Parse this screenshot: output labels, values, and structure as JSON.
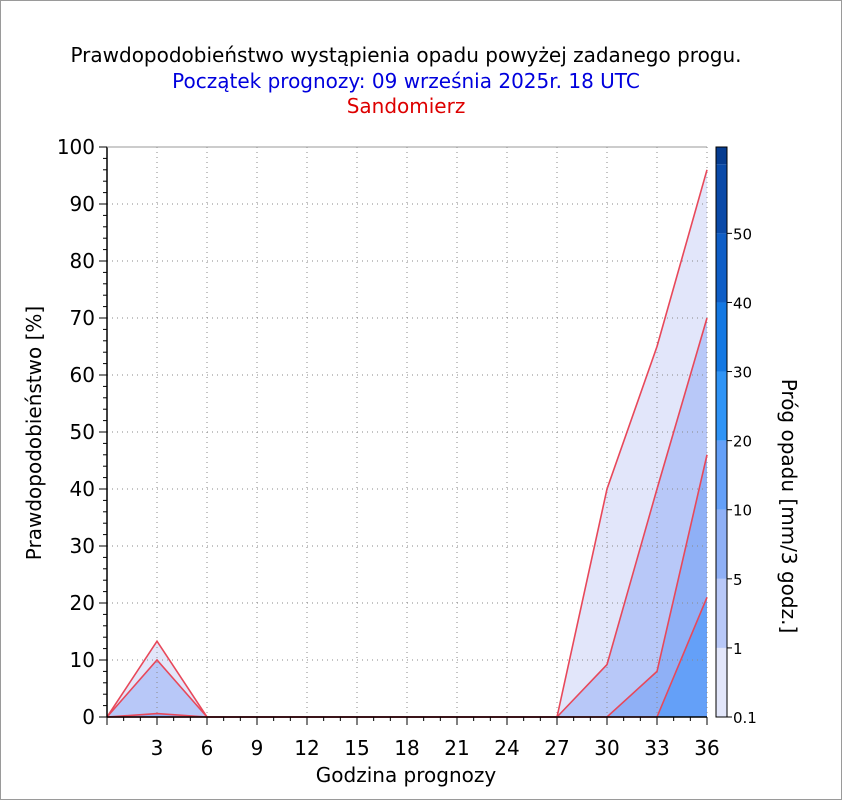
{
  "title": "Prawdopodobieństwo wystąpienia opadu powyżej zadanego progu.",
  "subtitle": "Początek prognozy: 09 września 2025r. 18 UTC",
  "location": "Sandomierz",
  "colors": {
    "title": "#000000",
    "subtitle": "#0000dd",
    "location": "#dd0000",
    "contour_line": "#e8485a"
  },
  "chart_data": {
    "type": "area",
    "title": "Prawdopodobieństwo wystąpienia opadu powyżej zadanego progu.",
    "xlabel": "Godzina prognozy",
    "ylabel": "Prawdopodobieństwo [%]",
    "xlim": [
      0,
      36
    ],
    "ylim": [
      0,
      100
    ],
    "x_ticks": [
      3,
      6,
      9,
      12,
      15,
      18,
      21,
      24,
      27,
      30,
      33,
      36
    ],
    "y_ticks": [
      0,
      10,
      20,
      30,
      40,
      50,
      60,
      70,
      80,
      90,
      100
    ],
    "grid": true,
    "x": [
      0,
      3,
      6,
      9,
      12,
      15,
      18,
      21,
      24,
      27,
      30,
      33,
      36
    ],
    "series": [
      {
        "threshold": 0.1,
        "color": "#e2e6fa",
        "values": [
          0,
          13.3,
          0,
          0,
          0,
          0,
          0,
          0,
          0,
          0,
          40,
          65,
          96
        ]
      },
      {
        "threshold": 1,
        "color": "#b8c8f8",
        "values": [
          0,
          10,
          0,
          0,
          0,
          0,
          0,
          0,
          0,
          0,
          9.2,
          40,
          70
        ]
      },
      {
        "threshold": 5,
        "color": "#8fb0f6",
        "values": [
          0,
          0.6,
          0,
          0,
          0,
          0,
          0,
          0,
          0,
          0,
          0,
          8,
          46
        ]
      },
      {
        "threshold": 10,
        "color": "#64a0f8",
        "values": [
          0,
          0,
          0,
          0,
          0,
          0,
          0,
          0,
          0,
          0,
          0,
          0,
          21
        ]
      }
    ],
    "colorbar": {
      "label": "Próg opadu [mm/3 godz.]",
      "levels": [
        {
          "label": "0.1",
          "color": "#e2e6fa"
        },
        {
          "label": "1",
          "color": "#b8c8f8"
        },
        {
          "label": "5",
          "color": "#8fb0f6"
        },
        {
          "label": "10",
          "color": "#64a0f8"
        },
        {
          "label": "20",
          "color": "#2f94f6"
        },
        {
          "label": "30",
          "color": "#1478e2"
        },
        {
          "label": "40",
          "color": "#0f5ec6"
        },
        {
          "label": "50",
          "color": "#0a4aa8"
        }
      ],
      "top_color": "#063c90"
    }
  }
}
